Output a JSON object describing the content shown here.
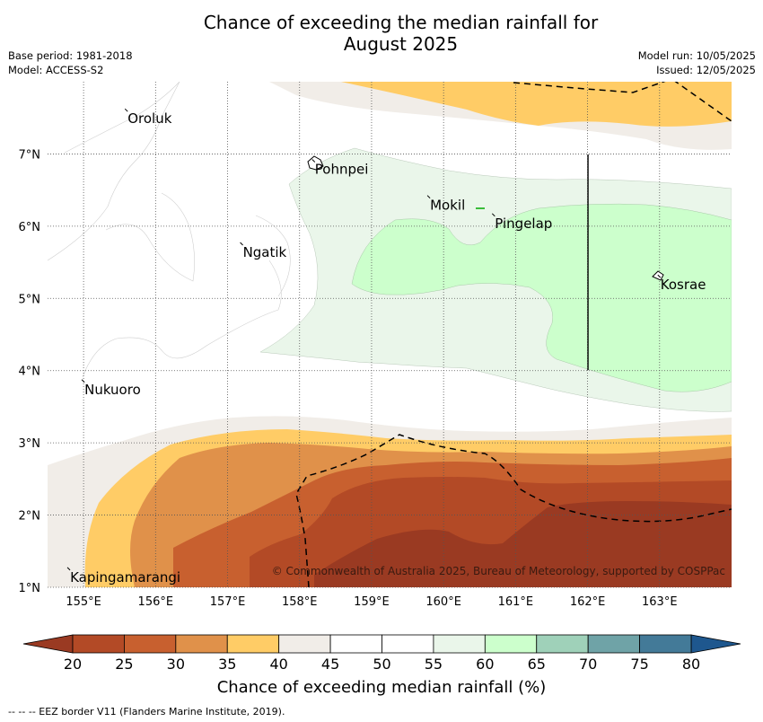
{
  "title_line1": "Chance of exceeding the median rainfall for",
  "title_line2": "August 2025",
  "base_period": "Base period: 1981-2018",
  "model": "Model: ACCESS-S2",
  "model_run": "Model run: 10/05/2025",
  "issued": "Issued: 12/05/2025",
  "map": {
    "lon_range": [
      154.5,
      164.0
    ],
    "lat_range": [
      1.0,
      8.0
    ],
    "lon_ticks": [
      "155°E",
      "156°E",
      "157°E",
      "158°E",
      "159°E",
      "160°E",
      "161°E",
      "162°E",
      "163°E"
    ],
    "lat_ticks": [
      "1°N",
      "2°N",
      "3°N",
      "4°N",
      "5°N",
      "6°N",
      "7°N"
    ],
    "places": [
      {
        "name": "Oroluk",
        "lon": 155.6,
        "lat": 7.6
      },
      {
        "name": "Pohnpei",
        "lon": 158.2,
        "lat": 6.9
      },
      {
        "name": "Mokil",
        "lon": 159.8,
        "lat": 6.4
      },
      {
        "name": "Pingelap",
        "lon": 160.7,
        "lat": 6.15
      },
      {
        "name": "Ngatik",
        "lon": 157.2,
        "lat": 5.75
      },
      {
        "name": "Kosrae",
        "lon": 163.0,
        "lat": 5.3
      },
      {
        "name": "Nukuoro",
        "lon": 155.0,
        "lat": 3.85
      },
      {
        "name": "Kapingamarangi",
        "lon": 154.8,
        "lat": 1.25
      }
    ],
    "copyright": "© Commonwealth of Australia 2025, Bureau of Meteorology, supported by COSPPac"
  },
  "colorbar": {
    "ticks": [
      "20",
      "25",
      "30",
      "35",
      "40",
      "45",
      "50",
      "55",
      "60",
      "65",
      "70",
      "75",
      "80"
    ],
    "colors": [
      "#b34a26",
      "#c8602f",
      "#e0914a",
      "#ffcc66",
      "#f1ede8",
      "#ffffff",
      "#ffffff",
      "#eaf6ea",
      "#ccffcc",
      "#9fd1b9",
      "#6fa3a7",
      "#437a98"
    ],
    "under_color": "#9a3a22",
    "over_color": "#1e578e",
    "label": "Chance of exceeding median rainfall (%)"
  },
  "footer": "-- -- -- EEZ border V11 (Flanders Marine Institute, 2019)."
}
